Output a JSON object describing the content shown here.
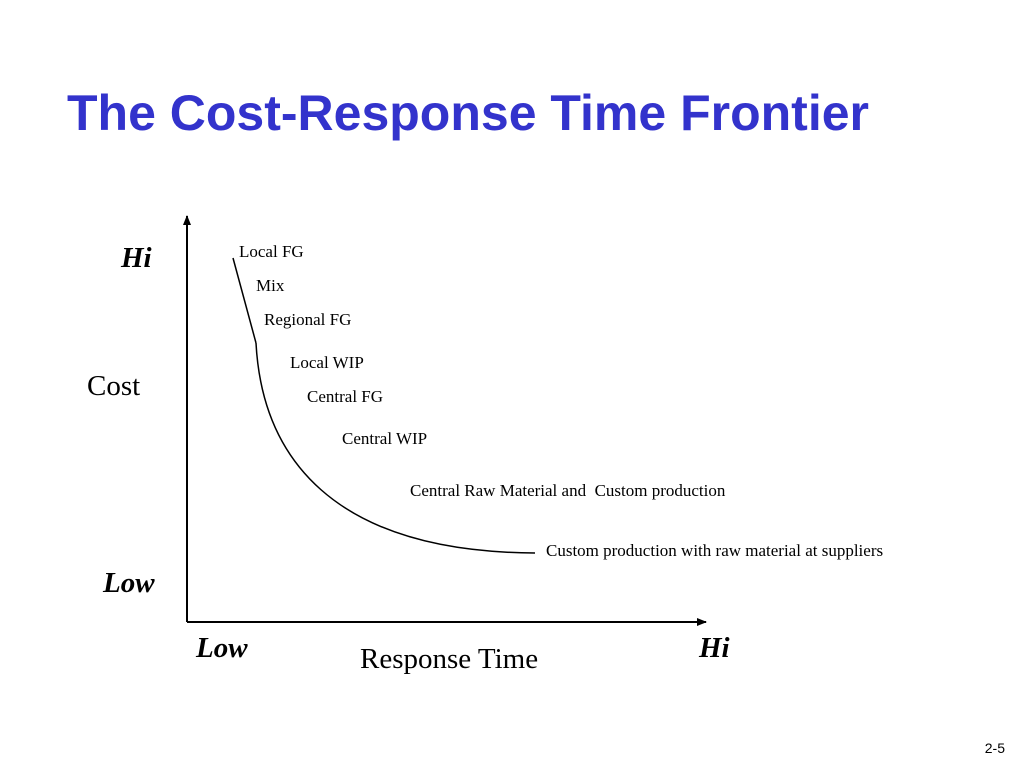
{
  "slide": {
    "title": "The Cost-Response Time Frontier",
    "page_number": "2-5"
  },
  "diagram": {
    "y_axis": {
      "label": "Cost",
      "high_label": "Hi",
      "low_label": "Low"
    },
    "x_axis": {
      "label": "Response Time",
      "low_label": "Low",
      "high_label": "Hi"
    },
    "frontier_points": [
      "Local FG",
      "Mix",
      "Regional FG",
      "Local WIP",
      "Central FG",
      "Central WIP",
      "Central Raw Material and  Custom production",
      "Custom production with raw material at suppliers"
    ]
  }
}
